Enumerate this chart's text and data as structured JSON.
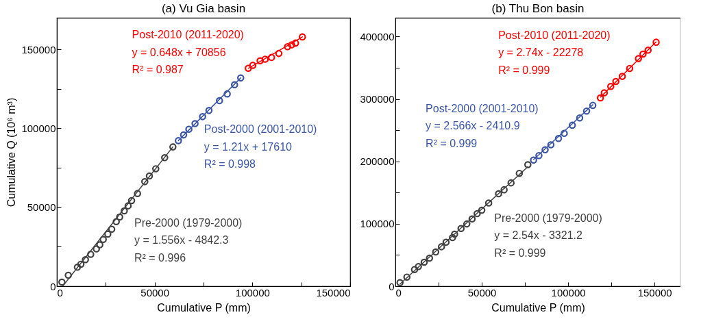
{
  "chart_data": [
    {
      "type": "scatter",
      "title": "(a) Vu Gia basin",
      "xlabel": "Cumulative P (mm)",
      "ylabel": "Cumulative Q (10⁶ m³)",
      "marker": "circle",
      "xlim": [
        0,
        150000
      ],
      "xticks": [
        0,
        {
          "value": 25000,
          "label": null
        },
        50000,
        {
          "value": 75000,
          "label": null
        },
        100000,
        {
          "value": 125000,
          "label": null
        },
        150000
      ],
      "ylim": [
        0,
        170000
      ],
      "yticks": [
        0,
        {
          "value": 25000,
          "label": null
        },
        50000,
        {
          "value": 75000,
          "label": null
        },
        100000,
        {
          "value": 125000,
          "label": null
        },
        150000
      ],
      "series": [
        {
          "type": "scatter",
          "color": "#404040",
          "x": [
            2570,
            5840,
            10510,
            12270,
            14600,
            17290,
            20210,
            21960,
            23710,
            26050,
            28040,
            30370,
            32120,
            34460,
            36440,
            38200,
            41230,
            44970,
            47310,
            50580,
            55140,
            59340
          ],
          "values": [
            2600,
            6900,
            12000,
            13900,
            16800,
            20200,
            23600,
            26200,
            29600,
            33000,
            36100,
            40900,
            43800,
            47700,
            50900,
            54200,
            58700,
            66200,
            69800,
            74400,
            81400,
            88200
          ]
        },
        {
          "type": "scatter",
          "color": "#3a55a4",
          "x": [
            62140,
            64820,
            67510,
            70660,
            74520,
            77790,
            83160,
            87130,
            90870,
            94020
          ],
          "values": [
            92200,
            95800,
            99400,
            103000,
            107400,
            111300,
            117500,
            121800,
            127600,
            131900
          ]
        },
        {
          "type": "scatter",
          "color": "#ff0000",
          "x": [
            97880,
            100210,
            103950,
            106520,
            109790,
            113530,
            117970,
            120070,
            122060,
            125560
          ],
          "values": [
            138000,
            139900,
            142800,
            143800,
            144900,
            147400,
            151700,
            152900,
            154000,
            157900
          ]
        },
        {
          "type": "line",
          "marker": "none",
          "color": "#404040",
          "x": [
            3000,
            59300
          ],
          "values": [
            0,
            88200
          ]
        },
        {
          "type": "line",
          "marker": "none",
          "color": "#3a55a4",
          "x": [
            62100,
            94000
          ],
          "values": [
            92200,
            131900
          ]
        },
        {
          "type": "line",
          "marker": "none",
          "color": "#ff0000",
          "x": [
            97900,
            125600
          ],
          "values": [
            138000,
            157900
          ]
        }
      ],
      "annotations": [
        "Pre-2000 (1979-2000)",
        "y = 1.556x - 4842.3",
        "R² = 0.996",
        "Post-2000 (2001-2010)",
        "y = 1.21x + 17610",
        "R² = 0.998",
        "Post-2010 (2011-2020)",
        "y = 0.648x + 70856",
        "R² = 0.987"
      ]
    },
    {
      "type": "scatter",
      "title": "(b) Thu Bon basin",
      "xlabel": "Cumulative P (mm)",
      "marker": "circle",
      "xlim": [
        0,
        165000
      ],
      "xticks": [
        0,
        {
          "value": 25000,
          "label": null
        },
        50000,
        {
          "value": 75000,
          "label": null
        },
        100000,
        {
          "value": 125000,
          "label": null
        },
        150000
      ],
      "ylim": [
        0,
        430000
      ],
      "yticks": [
        0,
        {
          "value": 50000,
          "label": null
        },
        100000,
        {
          "value": 150000,
          "label": null
        },
        200000,
        {
          "value": 250000,
          "label": null
        },
        300000,
        {
          "value": 350000,
          "label": null
        },
        400000
      ],
      "series": [
        {
          "type": "scatter",
          "color": "#404040",
          "x": [
            2670,
            6670,
            11070,
            13330,
            16670,
            19730,
            23330,
            26670,
            29330,
            33070,
            34270,
            38000,
            41330,
            44400,
            47330,
            50000,
            54000,
            59730,
            62930,
            66930,
            71730,
            76670
          ],
          "values": [
            5800,
            14600,
            26700,
            31400,
            38400,
            44900,
            54800,
            63200,
            70500,
            77800,
            83300,
            92400,
            99700,
            107800,
            116200,
            121700,
            133300,
            148000,
            154500,
            165500,
            180800,
            194700
          ]
        },
        {
          "type": "scatter",
          "color": "#3a55a4",
          "x": [
            80000,
            83070,
            86670,
            90000,
            94400,
            97730,
            102400,
            106670,
            110670,
            114270
          ],
          "values": [
            202000,
            209300,
            218500,
            226500,
            236700,
            244800,
            257900,
            269600,
            280600,
            289700
          ]
        },
        {
          "type": "scatter",
          "color": "#ff0000",
          "x": [
            118670,
            120930,
            124670,
            127600,
            131330,
            135600,
            140670,
            143330,
            146270,
            150930
          ],
          "values": [
            301700,
            309800,
            320000,
            328000,
            336100,
            348900,
            364600,
            371900,
            378100,
            390900
          ]
        },
        {
          "type": "line",
          "marker": "none",
          "color": "#404040",
          "x": [
            2700,
            76700
          ],
          "values": [
            3500,
            191400
          ]
        },
        {
          "type": "line",
          "marker": "none",
          "color": "#3a55a4",
          "x": [
            80000,
            114300
          ],
          "values": [
            202900,
            290800
          ]
        },
        {
          "type": "line",
          "marker": "none",
          "color": "#ff0000",
          "x": [
            118700,
            150900
          ],
          "values": [
            302900,
            391300
          ]
        }
      ],
      "annotations": [
        "Pre-2000 (1979-2000)",
        "y = 2.54x - 3321.2",
        "R² = 0.999",
        "Post-2000 (2001-2010)",
        "y = 2.566x - 2410.9",
        "R² = 0.999",
        "Post-2010 (2011-2020)",
        "y = 2.74x - 22278",
        "R² = 0.999"
      ]
    }
  ]
}
